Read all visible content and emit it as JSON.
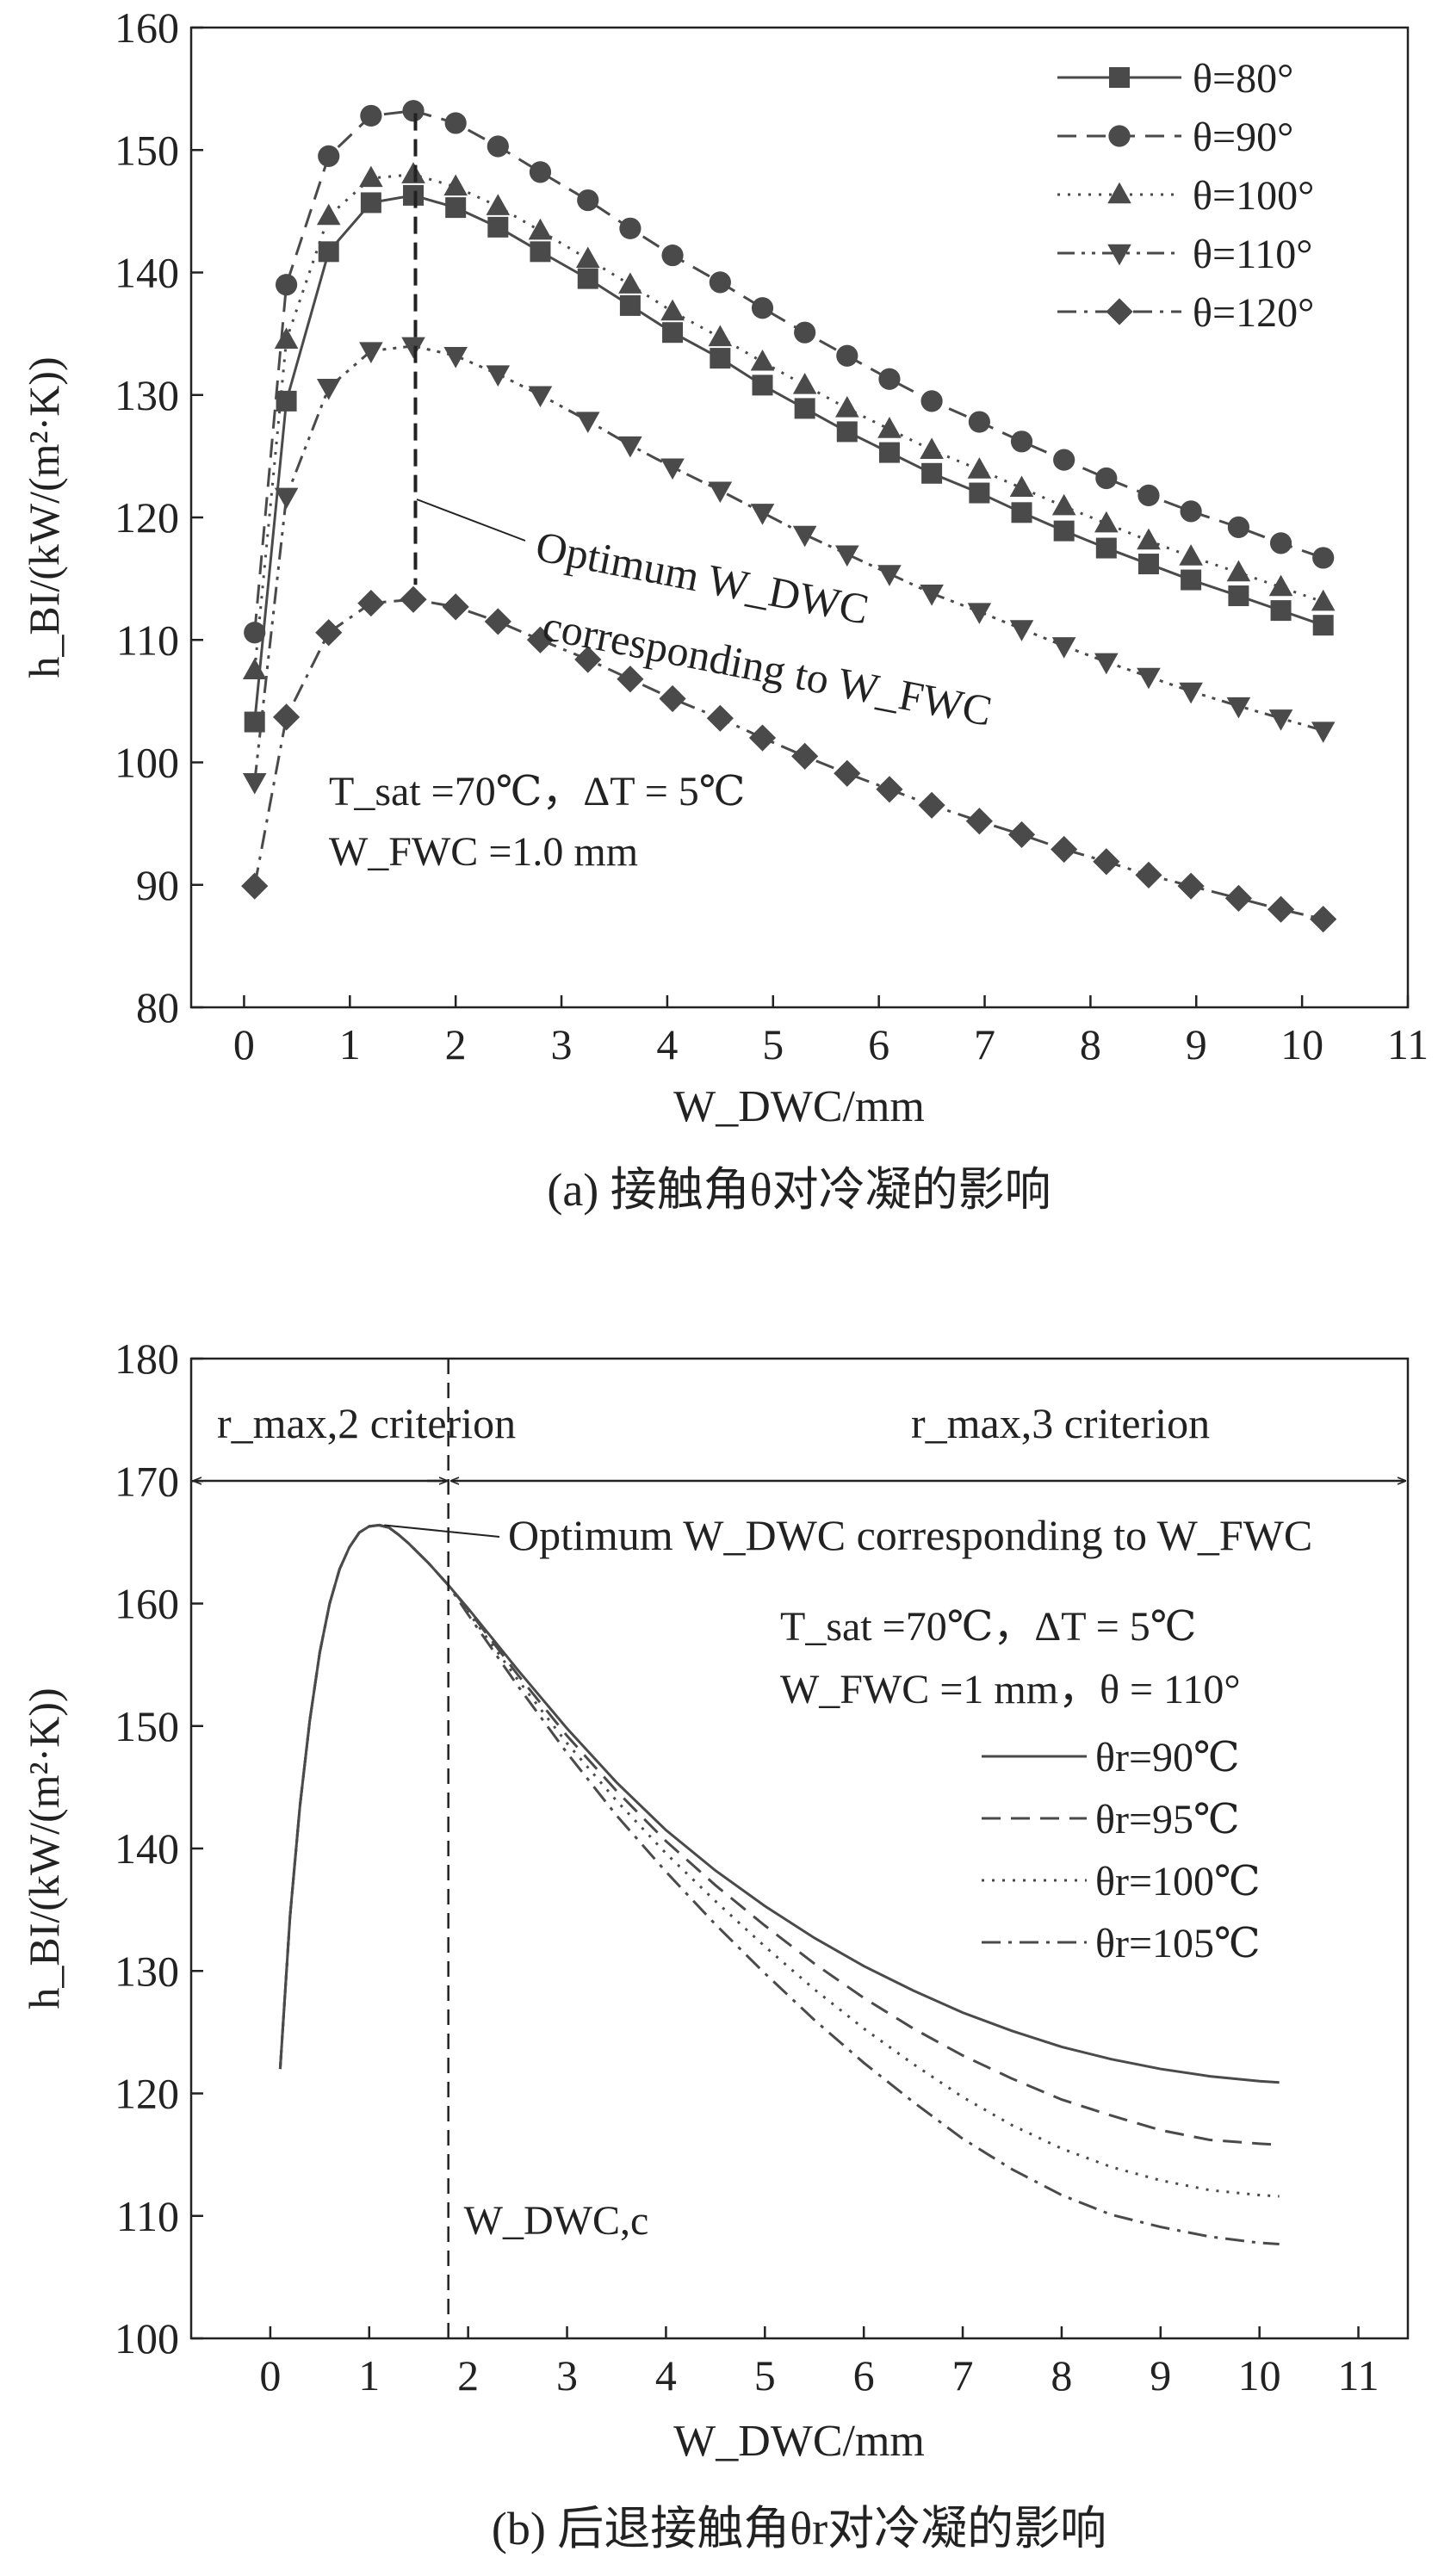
{
  "chart_data": [
    {
      "type": "line",
      "caption": "(a) 接触角θ对冷凝的影响",
      "xlabel": "W_DWC/mm",
      "ylabel": "h_BI/(kW/(m²·K))",
      "xlim": [
        -0.5,
        11
      ],
      "ylim": [
        80,
        160
      ],
      "xticks": [
        0,
        1,
        2,
        3,
        4,
        5,
        6,
        7,
        8,
        9,
        10,
        11
      ],
      "yticks": [
        80,
        90,
        100,
        110,
        120,
        130,
        140,
        150,
        160
      ],
      "legend_position": "top-right",
      "x": [
        0.1,
        0.4,
        0.8,
        1.2,
        1.6,
        2.0,
        2.4,
        2.8,
        3.25,
        3.65,
        4.05,
        4.5,
        4.9,
        5.3,
        5.7,
        6.1,
        6.5,
        6.95,
        7.35,
        7.75,
        8.15,
        8.55,
        8.95,
        9.4,
        9.8,
        10.2
      ],
      "series": [
        {
          "name": "θ=80°",
          "marker": "square",
          "line": "solid",
          "values": [
            103.3,
            129.5,
            141.7,
            145.7,
            146.3,
            145.3,
            143.7,
            141.7,
            139.5,
            137.3,
            135.1,
            133.0,
            130.8,
            128.9,
            127.0,
            125.3,
            123.6,
            122.0,
            120.4,
            118.9,
            117.5,
            116.2,
            114.9,
            113.6,
            112.4,
            111.2
          ]
        },
        {
          "name": "θ=90°",
          "marker": "circle",
          "line": "dashed",
          "values": [
            110.6,
            139.0,
            149.5,
            152.8,
            153.2,
            152.2,
            150.3,
            148.2,
            145.9,
            143.6,
            141.4,
            139.2,
            137.1,
            135.1,
            133.2,
            131.3,
            129.5,
            127.8,
            126.2,
            124.7,
            123.2,
            121.8,
            120.5,
            119.2,
            117.9,
            116.7
          ]
        },
        {
          "name": "θ=100°",
          "marker": "triangle-up",
          "line": "dotted",
          "values": [
            107.5,
            134.5,
            144.6,
            147.7,
            148.0,
            147.0,
            145.4,
            143.4,
            141.1,
            139.0,
            136.8,
            134.7,
            132.7,
            130.8,
            128.9,
            127.2,
            125.5,
            123.9,
            122.4,
            120.9,
            119.5,
            118.1,
            116.8,
            115.5,
            114.3,
            113.1
          ]
        },
        {
          "name": "θ=110°",
          "marker": "triangle-down",
          "line": "dash-dot-dot",
          "values": [
            98.4,
            121.7,
            130.6,
            133.6,
            134.0,
            133.2,
            131.7,
            130.0,
            127.9,
            125.9,
            124.1,
            122.2,
            120.4,
            118.6,
            117.0,
            115.4,
            113.8,
            112.3,
            110.9,
            109.5,
            108.2,
            107.0,
            105.8,
            104.6,
            103.6,
            102.6
          ]
        },
        {
          "name": "θ=120°",
          "marker": "diamond",
          "line": "dash-dot",
          "values": [
            89.9,
            103.7,
            110.6,
            113.0,
            113.3,
            112.7,
            111.5,
            110.0,
            108.4,
            106.8,
            105.2,
            103.6,
            102.0,
            100.5,
            99.1,
            97.8,
            96.5,
            95.2,
            94.1,
            92.9,
            91.9,
            90.8,
            89.9,
            88.9,
            88.0,
            87.2
          ]
        }
      ],
      "annotations": {
        "optimum_line1": "Optimum W_DWC",
        "optimum_line2": "corresponding to W_FWC",
        "conditions_line1": "T_sat =70℃，ΔT = 5℃",
        "conditions_line2": "W_FWC =1.0 mm",
        "optimum_x": 1.62
      }
    },
    {
      "type": "line",
      "caption": "(b) 后退接触角θr对冷凝的影响",
      "xlabel": "W_DWC/mm",
      "ylabel": "h_BI/(kW/(m²·K))",
      "xlim": [
        -0.8,
        11.5
      ],
      "ylim": [
        100,
        180
      ],
      "xticks": [
        0,
        1,
        2,
        3,
        4,
        5,
        6,
        7,
        8,
        9,
        10,
        11
      ],
      "yticks": [
        100,
        110,
        120,
        130,
        140,
        150,
        160,
        170,
        180
      ],
      "legend_position": "right",
      "x": [
        0.1,
        0.2,
        0.3,
        0.4,
        0.5,
        0.6,
        0.7,
        0.8,
        0.9,
        1.0,
        1.1,
        1.2,
        1.3,
        1.4,
        1.5,
        1.6,
        1.7,
        1.8,
        2.0,
        2.5,
        3.0,
        3.5,
        4.0,
        4.5,
        5.0,
        5.5,
        6.0,
        6.5,
        7.0,
        7.5,
        8.0,
        8.5,
        9.0,
        9.5,
        10.0,
        10.2
      ],
      "series": [
        {
          "name": "θr=90℃",
          "line": "solid",
          "values": [
            122.0,
            134.5,
            143.5,
            150.5,
            156.0,
            160.0,
            162.8,
            164.6,
            165.8,
            166.3,
            166.4,
            166.2,
            165.6,
            164.9,
            164.1,
            163.3,
            162.4,
            161.5,
            159.6,
            154.6,
            149.8,
            145.4,
            141.5,
            138.2,
            135.3,
            132.7,
            130.4,
            128.4,
            126.6,
            125.1,
            123.8,
            122.8,
            122.0,
            121.4,
            121.0,
            120.9
          ]
        },
        {
          "name": "θr=95℃",
          "line": "dashed",
          "values": [
            122.0,
            134.5,
            143.5,
            150.5,
            156.0,
            160.0,
            162.8,
            164.6,
            165.8,
            166.3,
            166.4,
            166.2,
            165.6,
            164.9,
            164.1,
            163.3,
            162.4,
            161.5,
            159.5,
            154.2,
            149.2,
            144.7,
            140.6,
            137.0,
            133.7,
            130.6,
            127.8,
            125.3,
            123.1,
            121.2,
            119.5,
            118.2,
            117.0,
            116.2,
            115.9,
            115.8
          ]
        },
        {
          "name": "θr=100℃",
          "line": "dotted",
          "values": [
            122.0,
            134.5,
            143.5,
            150.5,
            156.0,
            160.0,
            162.8,
            164.6,
            165.8,
            166.3,
            166.4,
            166.2,
            165.6,
            164.9,
            164.1,
            163.3,
            162.4,
            161.5,
            159.3,
            153.8,
            148.6,
            143.9,
            139.6,
            135.7,
            132.0,
            128.5,
            125.3,
            122.4,
            119.7,
            117.4,
            115.5,
            114.0,
            112.9,
            112.1,
            111.7,
            111.6
          ]
        },
        {
          "name": "θr=105℃",
          "line": "dash-dot",
          "values": [
            122.0,
            134.5,
            143.5,
            150.5,
            156.0,
            160.0,
            162.8,
            164.6,
            165.8,
            166.3,
            166.4,
            166.2,
            165.6,
            164.9,
            164.1,
            163.3,
            162.4,
            161.5,
            159.1,
            153.3,
            147.8,
            142.7,
            138.1,
            133.8,
            129.8,
            126.0,
            122.5,
            119.3,
            116.3,
            113.8,
            111.7,
            110.1,
            109.1,
            108.3,
            107.8,
            107.7
          ]
        }
      ],
      "annotations": {
        "region_left": "r_max,2 criterion",
        "region_right": "r_max,3 criterion",
        "optimum": "Optimum W_DWC corresponding to W_FWC",
        "conditions_line1": "T_sat =70℃，ΔT = 5℃",
        "conditions_line2": "W_FWC =1 mm，θ = 110°",
        "critical_label": "W_DWC,c",
        "critical_x": 1.8,
        "peak_x": 1.1,
        "peak_y": 166.4
      }
    }
  ]
}
